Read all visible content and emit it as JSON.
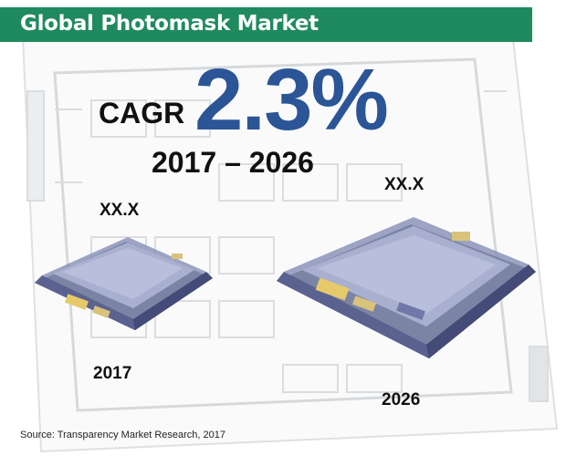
{
  "banner": {
    "title": "Global Photomask Market"
  },
  "cagr": {
    "label": "CAGR",
    "value": "2.3%",
    "period": "2017 – 2026"
  },
  "values": {
    "y2017": "XX.X",
    "y2026": "XX.X"
  },
  "years": {
    "start": "2017",
    "end": "2026"
  },
  "source": "Source: Transparency Market Research, 2017",
  "colors": {
    "banner": "#1f8a5e",
    "cagr_value": "#2b5596",
    "text": "#111111"
  }
}
